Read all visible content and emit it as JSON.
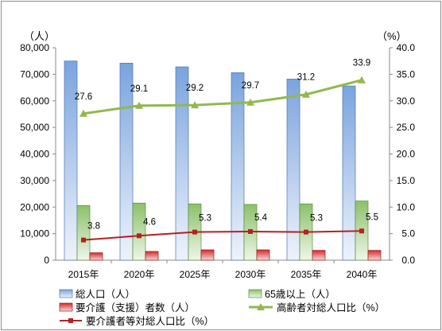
{
  "chart_data": {
    "type": "bar",
    "categories": [
      "2015年",
      "2020年",
      "2025年",
      "2030年",
      "2035年",
      "2040年"
    ],
    "left_axis": {
      "unit": "（人）",
      "ylim": [
        0,
        80000
      ],
      "ticks": [
        "0",
        "10,000",
        "20,000",
        "30,000",
        "40,000",
        "50,000",
        "60,000",
        "70,000",
        "80,000"
      ]
    },
    "right_axis": {
      "unit": "（%）",
      "ylim": [
        0,
        40
      ],
      "ticks": [
        "0.0",
        "5.0",
        "10.0",
        "15.0",
        "20.0",
        "25.0",
        "30.0",
        "35.0",
        "40.0"
      ]
    },
    "series": [
      {
        "name": "総人口（人）",
        "type": "bar",
        "axis": "left",
        "color": "#6f9bd8",
        "values": [
          75000,
          74200,
          72800,
          70600,
          68200,
          65600
        ]
      },
      {
        "name": "65歳以上（人）",
        "type": "bar",
        "axis": "left",
        "color": "#8cc06a",
        "values": [
          20600,
          21500,
          21200,
          21000,
          21200,
          22300
        ]
      },
      {
        "name": "要介護（支援）者数（人）",
        "type": "bar",
        "axis": "left",
        "color": "#d42a2a",
        "values": [
          2800,
          3300,
          3900,
          3900,
          3700,
          3700
        ]
      },
      {
        "name": "高齢者対総人口比（%）",
        "type": "line",
        "axis": "right",
        "color": "#92b84e",
        "values": [
          27.6,
          29.1,
          29.2,
          29.7,
          31.2,
          33.9
        ],
        "labels": [
          "27.6",
          "29.1",
          "29.2",
          "29.7",
          "31.2",
          "33.9"
        ]
      },
      {
        "name": "要介護者等対総人口比（%）",
        "type": "line",
        "axis": "right",
        "color": "#b22222",
        "values": [
          3.8,
          4.6,
          5.3,
          5.4,
          5.3,
          5.5
        ],
        "labels": [
          "3.8",
          "4.6",
          "5.3",
          "5.4",
          "5.3",
          "5.5"
        ]
      }
    ],
    "grid": false,
    "legend": "bottom"
  }
}
